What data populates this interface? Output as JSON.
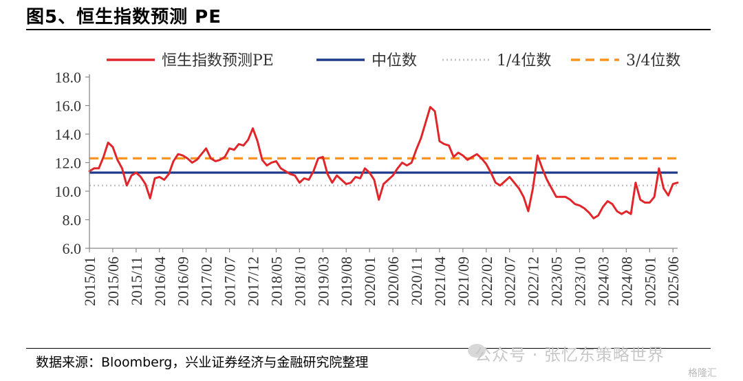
{
  "header": {
    "title": "图5、恒生指数预测 PE"
  },
  "footer": {
    "source": "数据来源：Bloomberg，兴业证券经济与金融研究院整理",
    "watermark": "公众号 · 张忆东策略世界",
    "corner_logo": "格隆汇"
  },
  "chart_data": {
    "type": "line",
    "title": "图5、恒生指数预测 PE",
    "xlabel": "",
    "ylabel": "",
    "ylim": [
      6.0,
      18.0
    ],
    "yticks": [
      6.0,
      8.0,
      10.0,
      12.0,
      14.0,
      16.0,
      18.0
    ],
    "ytick_labels": [
      "6.0",
      "8.0",
      "10.0",
      "12.0",
      "14.0",
      "16.0",
      "18.0"
    ],
    "xlim": [
      "2015-01",
      "2025-07"
    ],
    "xtick_labels": [
      "2015/01",
      "2015/06",
      "2015/11",
      "2016/04",
      "2016/09",
      "2017/02",
      "2017/07",
      "2017/12",
      "2018/05",
      "2018/10",
      "2019/03",
      "2019/08",
      "2020/01",
      "2020/06",
      "2020/11",
      "2021/04",
      "2021/09",
      "2022/02",
      "2022/07",
      "2022/12",
      "2023/05",
      "2023/10",
      "2024/03",
      "2024/08",
      "2025/01",
      "2025/06"
    ],
    "grid": false,
    "legend_position": "top",
    "colors": {
      "pe": "#e0262a",
      "median": "#1f3a8a",
      "q1": "#c0c0c0",
      "q3": "#f7931e"
    },
    "series": [
      {
        "name": "恒生指数预测PE",
        "style": "solid",
        "x": [
          "2015-01",
          "2015-02",
          "2015-03",
          "2015-04",
          "2015-05",
          "2015-06",
          "2015-07",
          "2015-08",
          "2015-09",
          "2015-10",
          "2015-11",
          "2015-12",
          "2016-01",
          "2016-02",
          "2016-03",
          "2016-04",
          "2016-05",
          "2016-06",
          "2016-07",
          "2016-08",
          "2016-09",
          "2016-10",
          "2016-11",
          "2016-12",
          "2017-01",
          "2017-02",
          "2017-03",
          "2017-04",
          "2017-05",
          "2017-06",
          "2017-07",
          "2017-08",
          "2017-09",
          "2017-10",
          "2017-11",
          "2017-12",
          "2018-01",
          "2018-02",
          "2018-03",
          "2018-04",
          "2018-05",
          "2018-06",
          "2018-07",
          "2018-08",
          "2018-09",
          "2018-10",
          "2018-11",
          "2018-12",
          "2019-01",
          "2019-02",
          "2019-03",
          "2019-04",
          "2019-05",
          "2019-06",
          "2019-07",
          "2019-08",
          "2019-09",
          "2019-10",
          "2019-11",
          "2019-12",
          "2020-01",
          "2020-02",
          "2020-03",
          "2020-04",
          "2020-05",
          "2020-06",
          "2020-07",
          "2020-08",
          "2020-09",
          "2020-10",
          "2020-11",
          "2020-12",
          "2021-01",
          "2021-02",
          "2021-03",
          "2021-04",
          "2021-05",
          "2021-06",
          "2021-07",
          "2021-08",
          "2021-09",
          "2021-10",
          "2021-11",
          "2021-12",
          "2022-01",
          "2022-02",
          "2022-03",
          "2022-04",
          "2022-05",
          "2022-06",
          "2022-07",
          "2022-08",
          "2022-09",
          "2022-10",
          "2022-11",
          "2022-12",
          "2023-01",
          "2023-02",
          "2023-03",
          "2023-04",
          "2023-05",
          "2023-06",
          "2023-07",
          "2023-08",
          "2023-09",
          "2023-10",
          "2023-11",
          "2023-12",
          "2024-01",
          "2024-02",
          "2024-03",
          "2024-04",
          "2024-05",
          "2024-06",
          "2024-07",
          "2024-08",
          "2024-09",
          "2024-10",
          "2024-11",
          "2024-12",
          "2025-01",
          "2025-02",
          "2025-03",
          "2025-04",
          "2025-05",
          "2025-06",
          "2025-07"
        ],
        "values": [
          11.4,
          11.6,
          11.6,
          12.4,
          13.4,
          13.1,
          12.2,
          11.6,
          10.4,
          11.1,
          11.3,
          11.0,
          10.5,
          9.5,
          10.9,
          11.0,
          10.8,
          11.2,
          12.1,
          12.6,
          12.5,
          12.3,
          12.0,
          12.2,
          12.6,
          13.0,
          12.3,
          12.1,
          12.2,
          12.4,
          13.0,
          12.9,
          13.3,
          13.2,
          13.6,
          14.4,
          13.5,
          12.2,
          11.8,
          12.0,
          12.1,
          11.6,
          11.4,
          11.2,
          11.1,
          10.6,
          10.9,
          10.8,
          11.4,
          12.3,
          12.4,
          11.2,
          10.6,
          11.1,
          10.8,
          10.5,
          10.6,
          11.0,
          10.9,
          11.6,
          11.3,
          10.8,
          9.4,
          10.5,
          10.8,
          11.1,
          11.6,
          12.0,
          11.8,
          12.0,
          12.9,
          13.7,
          14.8,
          15.9,
          15.6,
          13.5,
          13.3,
          13.2,
          12.4,
          12.7,
          12.5,
          12.2,
          12.4,
          12.6,
          12.3,
          11.9,
          11.3,
          10.6,
          10.4,
          10.7,
          11.0,
          10.6,
          10.2,
          9.6,
          8.6,
          10.2,
          12.5,
          11.6,
          10.8,
          10.2,
          9.6,
          9.6,
          9.6,
          9.4,
          9.1,
          9.0,
          8.8,
          8.5,
          8.1,
          8.3,
          8.9,
          9.3,
          9.1,
          8.6,
          8.4,
          8.6,
          8.4,
          10.6,
          9.4,
          9.2,
          9.2,
          9.6,
          11.6,
          10.2,
          9.7,
          10.5,
          10.6
        ]
      },
      {
        "name": "中位数",
        "style": "solid",
        "value": 11.3
      },
      {
        "name": "1/4位数",
        "style": "dotted",
        "value": 10.4
      },
      {
        "name": "3/4位数",
        "style": "dashed",
        "value": 12.3
      }
    ]
  }
}
